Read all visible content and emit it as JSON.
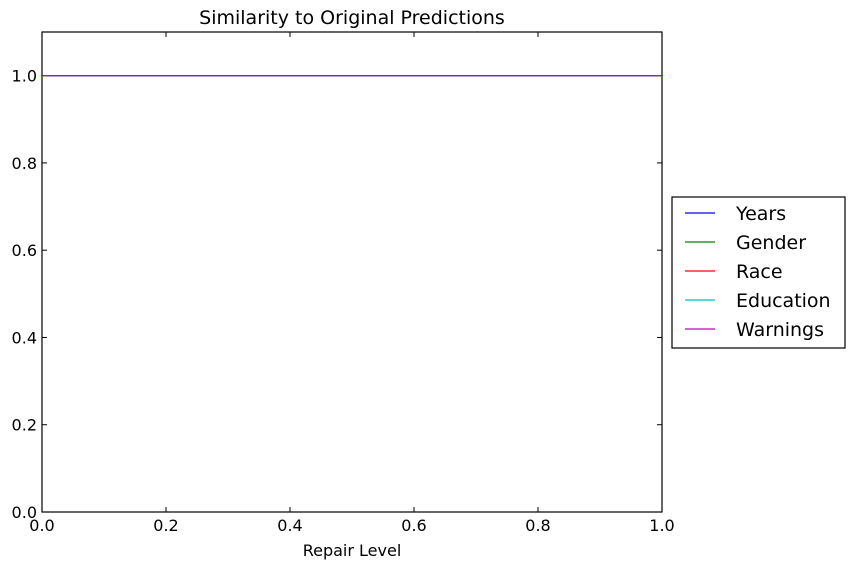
{
  "chart_data": {
    "type": "line",
    "title": "Similarity to Original Predictions",
    "xlabel": "Repair Level",
    "ylabel": "",
    "xlim": [
      0.0,
      1.0
    ],
    "ylim": [
      0.0,
      1.1
    ],
    "xticks": [
      "0.0",
      "0.2",
      "0.4",
      "0.6",
      "0.8",
      "1.0"
    ],
    "xtick_values": [
      0.0,
      0.2,
      0.4,
      0.6,
      0.8,
      1.0
    ],
    "yticks": [
      "0.0",
      "0.2",
      "0.4",
      "0.6",
      "0.8",
      "1.0"
    ],
    "ytick_values": [
      0.0,
      0.2,
      0.4,
      0.6,
      0.8,
      1.0
    ],
    "grid": false,
    "legend_position": "right-outside",
    "series": [
      {
        "name": "Years",
        "color": "#0000ff",
        "x": [
          0.0,
          1.0
        ],
        "y": [
          1.0,
          1.0
        ]
      },
      {
        "name": "Gender",
        "color": "#008000",
        "x": [
          0.0,
          1.0
        ],
        "y": [
          1.0,
          1.0
        ]
      },
      {
        "name": "Race",
        "color": "#ff0000",
        "x": [
          0.0,
          1.0
        ],
        "y": [
          1.0,
          1.0
        ]
      },
      {
        "name": "Education",
        "color": "#00bfbf",
        "x": [
          0.0,
          1.0
        ],
        "y": [
          1.0,
          1.0
        ]
      },
      {
        "name": "Warnings",
        "color": "#bf00bf",
        "x": [
          0.0,
          1.0
        ],
        "y": [
          1.0,
          1.0
        ]
      }
    ]
  }
}
